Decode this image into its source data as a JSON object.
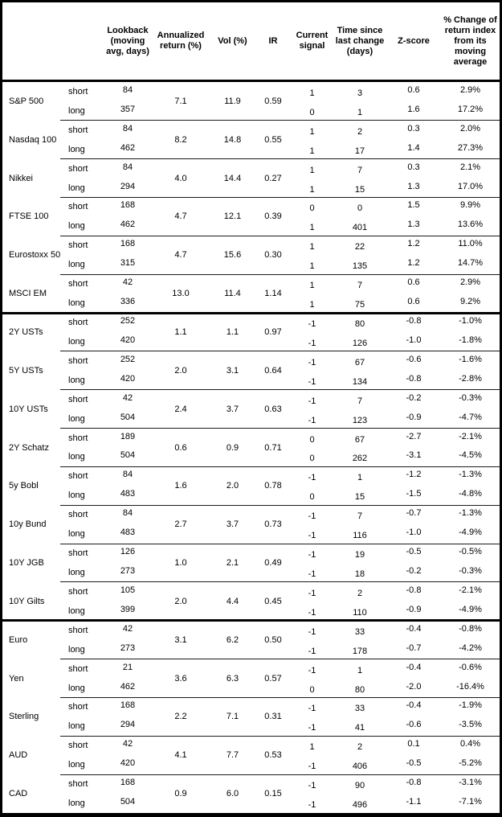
{
  "table": {
    "leg_labels": {
      "short": "short",
      "long": "long"
    },
    "columns": [
      "",
      "",
      "Lookback (moving avg, days)",
      "Annualized return (%)",
      "Vol (%)",
      "IR",
      "Current signal",
      "Time since last change (days)",
      "Z-score",
      "% Change of return index from its moving average"
    ],
    "groups": [
      {
        "asset": "S&P 500",
        "section_start": false,
        "ann_return": "7.1",
        "vol": "11.9",
        "ir": "0.59",
        "short": {
          "lookback": "84",
          "signal": "1",
          "time": "3",
          "z": "0.6",
          "pct": "2.9%"
        },
        "long": {
          "lookback": "357",
          "signal": "0",
          "time": "1",
          "z": "1.6",
          "pct": "17.2%"
        }
      },
      {
        "asset": "Nasdaq 100",
        "section_start": false,
        "ann_return": "8.2",
        "vol": "14.8",
        "ir": "0.55",
        "short": {
          "lookback": "84",
          "signal": "1",
          "time": "2",
          "z": "0.3",
          "pct": "2.0%"
        },
        "long": {
          "lookback": "462",
          "signal": "1",
          "time": "17",
          "z": "1.4",
          "pct": "27.3%"
        }
      },
      {
        "asset": "Nikkei",
        "section_start": false,
        "ann_return": "4.0",
        "vol": "14.4",
        "ir": "0.27",
        "short": {
          "lookback": "84",
          "signal": "1",
          "time": "7",
          "z": "0.3",
          "pct": "2.1%"
        },
        "long": {
          "lookback": "294",
          "signal": "1",
          "time": "15",
          "z": "1.3",
          "pct": "17.0%"
        }
      },
      {
        "asset": "FTSE 100",
        "section_start": false,
        "ann_return": "4.7",
        "vol": "12.1",
        "ir": "0.39",
        "short": {
          "lookback": "168",
          "signal": "0",
          "time": "0",
          "z": "1.5",
          "pct": "9.9%"
        },
        "long": {
          "lookback": "462",
          "signal": "1",
          "time": "401",
          "z": "1.3",
          "pct": "13.6%"
        }
      },
      {
        "asset": "Eurostoxx 50",
        "section_start": false,
        "ann_return": "4.7",
        "vol": "15.6",
        "ir": "0.30",
        "short": {
          "lookback": "168",
          "signal": "1",
          "time": "22",
          "z": "1.2",
          "pct": "11.0%"
        },
        "long": {
          "lookback": "315",
          "signal": "1",
          "time": "135",
          "z": "1.2",
          "pct": "14.7%"
        }
      },
      {
        "asset": "MSCI EM",
        "section_start": false,
        "ann_return": "13.0",
        "vol": "11.4",
        "ir": "1.14",
        "short": {
          "lookback": "42",
          "signal": "1",
          "time": "7",
          "z": "0.6",
          "pct": "2.9%"
        },
        "long": {
          "lookback": "336",
          "signal": "1",
          "time": "75",
          "z": "0.6",
          "pct": "9.2%"
        }
      },
      {
        "asset": "2Y USTs",
        "section_start": true,
        "ann_return": "1.1",
        "vol": "1.1",
        "ir": "0.97",
        "short": {
          "lookback": "252",
          "signal": "-1",
          "time": "80",
          "z": "-0.8",
          "pct": "-1.0%"
        },
        "long": {
          "lookback": "420",
          "signal": "-1",
          "time": "126",
          "z": "-1.0",
          "pct": "-1.8%"
        }
      },
      {
        "asset": "5Y USTs",
        "section_start": false,
        "ann_return": "2.0",
        "vol": "3.1",
        "ir": "0.64",
        "short": {
          "lookback": "252",
          "signal": "-1",
          "time": "67",
          "z": "-0.6",
          "pct": "-1.6%"
        },
        "long": {
          "lookback": "420",
          "signal": "-1",
          "time": "134",
          "z": "-0.8",
          "pct": "-2.8%"
        }
      },
      {
        "asset": "10Y USTs",
        "section_start": false,
        "ann_return": "2.4",
        "vol": "3.7",
        "ir": "0.63",
        "short": {
          "lookback": "42",
          "signal": "-1",
          "time": "7",
          "z": "-0.2",
          "pct": "-0.3%"
        },
        "long": {
          "lookback": "504",
          "signal": "-1",
          "time": "123",
          "z": "-0.9",
          "pct": "-4.7%"
        }
      },
      {
        "asset": "2Y Schatz",
        "section_start": false,
        "ann_return": "0.6",
        "vol": "0.9",
        "ir": "0.71",
        "short": {
          "lookback": "189",
          "signal": "0",
          "time": "67",
          "z": "-2.7",
          "pct": "-2.1%"
        },
        "long": {
          "lookback": "504",
          "signal": "0",
          "time": "262",
          "z": "-3.1",
          "pct": "-4.5%"
        }
      },
      {
        "asset": "5y Bobl",
        "section_start": false,
        "ann_return": "1.6",
        "vol": "2.0",
        "ir": "0.78",
        "short": {
          "lookback": "84",
          "signal": "-1",
          "time": "1",
          "z": "-1.2",
          "pct": "-1.3%"
        },
        "long": {
          "lookback": "483",
          "signal": "0",
          "time": "15",
          "z": "-1.5",
          "pct": "-4.8%"
        }
      },
      {
        "asset": "10y Bund",
        "section_start": false,
        "ann_return": "2.7",
        "vol": "3.7",
        "ir": "0.73",
        "short": {
          "lookback": "84",
          "signal": "-1",
          "time": "7",
          "z": "-0.7",
          "pct": "-1.3%"
        },
        "long": {
          "lookback": "483",
          "signal": "-1",
          "time": "116",
          "z": "-1.0",
          "pct": "-4.9%"
        }
      },
      {
        "asset": "10Y JGB",
        "section_start": false,
        "ann_return": "1.0",
        "vol": "2.1",
        "ir": "0.49",
        "short": {
          "lookback": "126",
          "signal": "-1",
          "time": "19",
          "z": "-0.5",
          "pct": "-0.5%"
        },
        "long": {
          "lookback": "273",
          "signal": "-1",
          "time": "18",
          "z": "-0.2",
          "pct": "-0.3%"
        }
      },
      {
        "asset": "10Y Gilts",
        "section_start": false,
        "ann_return": "2.0",
        "vol": "4.4",
        "ir": "0.45",
        "short": {
          "lookback": "105",
          "signal": "-1",
          "time": "2",
          "z": "-0.8",
          "pct": "-2.1%"
        },
        "long": {
          "lookback": "399",
          "signal": "-1",
          "time": "110",
          "z": "-0.9",
          "pct": "-4.9%"
        }
      },
      {
        "asset": "Euro",
        "section_start": true,
        "ann_return": "3.1",
        "vol": "6.2",
        "ir": "0.50",
        "short": {
          "lookback": "42",
          "signal": "-1",
          "time": "33",
          "z": "-0.4",
          "pct": "-0.8%"
        },
        "long": {
          "lookback": "273",
          "signal": "-1",
          "time": "178",
          "z": "-0.7",
          "pct": "-4.2%"
        }
      },
      {
        "asset": "Yen",
        "section_start": false,
        "ann_return": "3.6",
        "vol": "6.3",
        "ir": "0.57",
        "short": {
          "lookback": "21",
          "signal": "-1",
          "time": "1",
          "z": "-0.4",
          "pct": "-0.6%"
        },
        "long": {
          "lookback": "462",
          "signal": "0",
          "time": "80",
          "z": "-2.0",
          "pct": "-16.4%"
        }
      },
      {
        "asset": "Sterling",
        "section_start": false,
        "ann_return": "2.2",
        "vol": "7.1",
        "ir": "0.31",
        "short": {
          "lookback": "168",
          "signal": "-1",
          "time": "33",
          "z": "-0.4",
          "pct": "-1.9%"
        },
        "long": {
          "lookback": "294",
          "signal": "-1",
          "time": "41",
          "z": "-0.6",
          "pct": "-3.5%"
        }
      },
      {
        "asset": "AUD",
        "section_start": false,
        "ann_return": "4.1",
        "vol": "7.7",
        "ir": "0.53",
        "short": {
          "lookback": "42",
          "signal": "1",
          "time": "2",
          "z": "0.1",
          "pct": "0.4%"
        },
        "long": {
          "lookback": "420",
          "signal": "-1",
          "time": "406",
          "z": "-0.5",
          "pct": "-5.2%"
        }
      },
      {
        "asset": "CAD",
        "section_start": false,
        "ann_return": "0.9",
        "vol": "6.0",
        "ir": "0.15",
        "short": {
          "lookback": "168",
          "signal": "-1",
          "time": "90",
          "z": "-0.8",
          "pct": "-3.1%"
        },
        "long": {
          "lookback": "504",
          "signal": "-1",
          "time": "496",
          "z": "-1.1",
          "pct": "-7.1%"
        }
      }
    ]
  }
}
